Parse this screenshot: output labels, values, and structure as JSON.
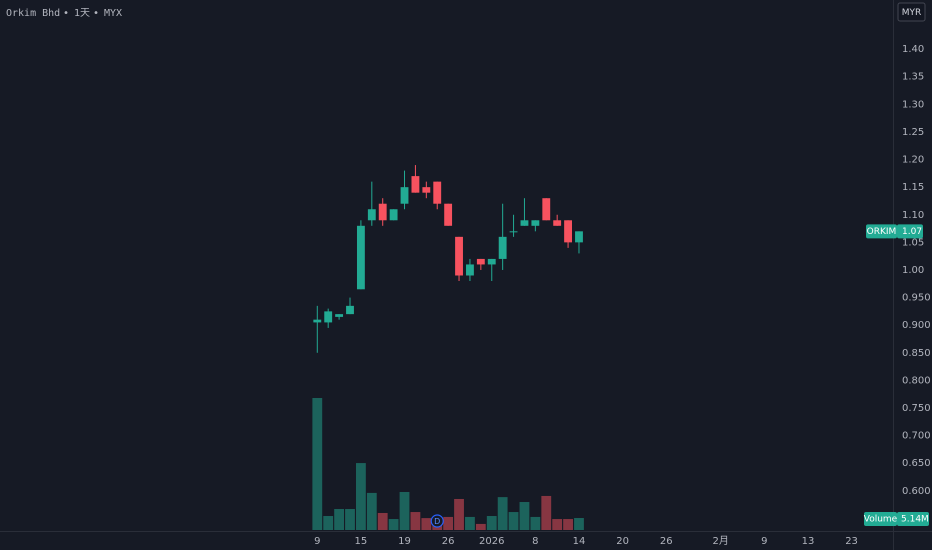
{
  "chart_data": {
    "type": "candlestick",
    "symbol": "Orkim Bhd",
    "interval": "1天",
    "exchange": "MYX",
    "currency": "MYR",
    "price_badge_name": "ORKIM",
    "up_color": "#22ab94",
    "down_color": "#f7525f",
    "candles": {
      "open": [
        0.905,
        0.905,
        0.915,
        0.92,
        0.965,
        1.09,
        1.12,
        1.09,
        1.12,
        1.17,
        1.15,
        1.16,
        1.12,
        1.06,
        0.99,
        1.02,
        1.01,
        1.02,
        1.07,
        1.08,
        1.08,
        1.13,
        1.09,
        1.09,
        1.05
      ],
      "high": [
        0.935,
        0.93,
        0.92,
        0.95,
        1.09,
        1.16,
        1.13,
        1.11,
        1.18,
        1.19,
        1.16,
        1.16,
        1.12,
        1.06,
        1.02,
        1.02,
        1.02,
        1.12,
        1.1,
        1.13,
        1.09,
        1.13,
        1.1,
        1.09,
        1.07
      ],
      "low": [
        0.85,
        0.895,
        0.91,
        0.92,
        0.965,
        1.08,
        1.08,
        1.09,
        1.11,
        1.14,
        1.13,
        1.11,
        1.08,
        0.98,
        0.98,
        1.0,
        0.98,
        1.0,
        1.06,
        1.08,
        1.07,
        1.09,
        1.08,
        1.04,
        1.03
      ],
      "close": [
        0.91,
        0.925,
        0.92,
        0.935,
        1.08,
        1.11,
        1.09,
        1.11,
        1.15,
        1.14,
        1.14,
        1.12,
        1.08,
        0.99,
        1.01,
        1.01,
        1.02,
        1.06,
        1.07,
        1.09,
        1.09,
        1.09,
        1.08,
        1.05,
        1.07
      ]
    },
    "volume": {
      "name": "Volume",
      "values": [
        56.6,
        6.0,
        9.0,
        9.0,
        28.7,
        15.9,
        7.3,
        4.7,
        16.3,
        7.7,
        5.1,
        5.6,
        5.6,
        13.3,
        5.6,
        2.6,
        6.0,
        14.1,
        7.7,
        12.0,
        5.6,
        14.6,
        4.7,
        4.7,
        5.14
      ],
      "last_value_label": "5.14M"
    },
    "markers": [
      {
        "x": 11,
        "label": "D"
      }
    ],
    "xlim": [
      -29.1,
      52.8
    ],
    "xticks": [
      {
        "value": 0,
        "label": "9"
      },
      {
        "value": 4,
        "label": "15"
      },
      {
        "value": 8,
        "label": "19"
      },
      {
        "value": 12,
        "label": "26"
      },
      {
        "value": 16,
        "label": "2026"
      },
      {
        "value": 20,
        "label": "8"
      },
      {
        "value": 24,
        "label": "14"
      },
      {
        "value": 28,
        "label": "20"
      },
      {
        "value": 32,
        "label": "26"
      },
      {
        "value": 37,
        "label": "2月"
      },
      {
        "value": 41,
        "label": "9"
      },
      {
        "value": 45,
        "label": "13"
      },
      {
        "value": 49,
        "label": "23"
      }
    ],
    "ylim": [
      0.529,
      1.489
    ],
    "yticks": [
      {
        "value": 1.4,
        "label": "1.40"
      },
      1.35,
      {
        "value": 1.3,
        "label": "1.30"
      },
      1.25,
      {
        "value": 1.2,
        "label": "1.20"
      },
      1.15,
      {
        "value": 1.1,
        "label": "1.10"
      },
      1.05,
      {
        "value": 1,
        "label": "1.00"
      },
      {
        "value": 0.95,
        "label": "0.950"
      },
      {
        "value": 0.9,
        "label": "0.900"
      },
      {
        "value": 0.85,
        "label": "0.850"
      },
      {
        "value": 0.8,
        "label": "0.800"
      },
      {
        "value": 0.75,
        "label": "0.750"
      },
      {
        "value": 0.7,
        "label": "0.700"
      },
      {
        "value": 0.65,
        "label": "0.650"
      },
      {
        "value": 0.6,
        "label": "0.600"
      }
    ],
    "grid": false
  }
}
